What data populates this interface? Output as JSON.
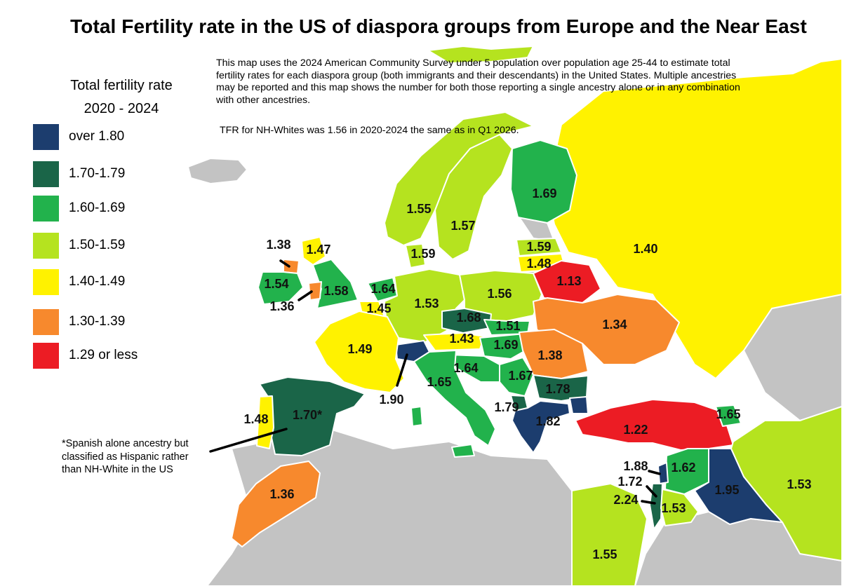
{
  "title": "Total Fertility rate in the US of diaspora groups from Europe and the Near East",
  "description": "This map uses the 2024 American Community Survey under 5 population over population age 25-44 to estimate total fertility rates for each diaspora group (both immigrants and their descendants) in the United States. Multiple ancestries may be reported and this map shows the number for both those reporting a single ancestry alone or in any combination with other ancestries.",
  "note": "TFR for NH-Whites was 1.56 in 2020-2024 the same as in Q1 2026.",
  "legend": {
    "title_line1": "Total fertility rate",
    "title_line2": "2020 - 2024",
    "items": [
      {
        "label": "over 1.80",
        "color": "#1c3d6e"
      },
      {
        "label": "1.70-1.79",
        "color": "#1a6548"
      },
      {
        "label": "1.60-1.69",
        "color": "#22b24c"
      },
      {
        "label": "1.50-1.59",
        "color": "#b5e31f"
      },
      {
        "label": "1.40-1.49",
        "color": "#fff200"
      },
      {
        "label": "1.30-1.39",
        "color": "#f7892d"
      },
      {
        "label": "1.29 or less",
        "color": "#ec1c24"
      }
    ]
  },
  "footnote": "*Spanish alone ancestry but classified as Hispanic rather than NH-White in the US",
  "no_data_color": "#c3c3c3",
  "values": {
    "norway": "1.55",
    "sweden": "1.57",
    "finland": "1.69",
    "denmark": "1.59",
    "estonia": "1.59",
    "latvia": "1.48",
    "scotland": "1.47",
    "northern_ireland": "1.38",
    "ireland": "1.54",
    "england": "1.58",
    "wales": "1.36",
    "netherlands": "1.64",
    "belgium": "1.45",
    "germany": "1.53",
    "poland": "1.56",
    "belarus": "1.13",
    "russia": "1.40",
    "ukraine": "1.34",
    "czechia": "1.68",
    "slovakia": "1.51",
    "austria": "1.43",
    "hungary": "1.69",
    "romania": "1.38",
    "france": "1.49",
    "switzerland": "1.90",
    "slovenia_croatia": "1.64",
    "italy": "1.65",
    "serbia": "1.67",
    "bulgaria": "1.78",
    "north_macedonia": "1.79",
    "greece": "1.82",
    "spain": "1.70*",
    "portugal": "1.48",
    "morocco": "1.36",
    "turkey": "1.22",
    "armenia": "1.65",
    "syria": "1.62",
    "lebanon": "1.88",
    "israel": "1.72",
    "palestine": "2.24",
    "jordan": "1.53",
    "iraq": "1.95",
    "iran": "1.53",
    "egypt": "1.55"
  }
}
